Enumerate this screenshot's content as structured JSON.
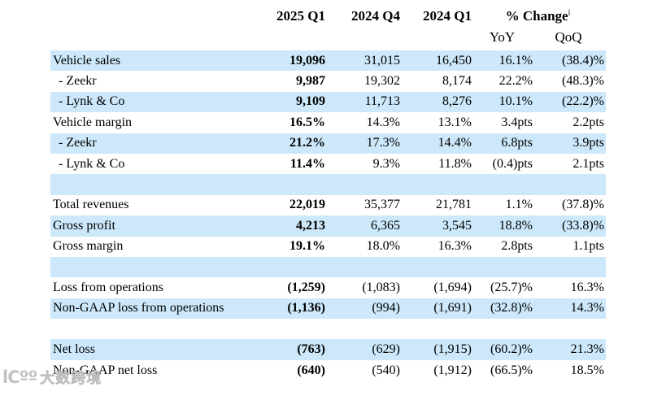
{
  "colors": {
    "stripe": "#cce8fa",
    "text": "#000000"
  },
  "header": {
    "col_2025_q1": "2025 Q1",
    "col_2024_q4": "2024 Q4",
    "col_2024_q1": "2024 Q1",
    "pct_change": "% Change",
    "pct_change_footnote": "i",
    "yoy": "YoY",
    "qoq": "QoQ"
  },
  "table": {
    "rows": [
      {
        "type": "data",
        "label": "Vehicle sales",
        "indent": false,
        "values": [
          "19,096",
          "31,015",
          "16,450",
          "16.1%",
          "(38.4)%"
        ]
      },
      {
        "type": "data",
        "label": "- Zeekr",
        "indent": true,
        "values": [
          "9,987",
          "19,302",
          "8,174",
          "22.2%",
          "(48.3)%"
        ]
      },
      {
        "type": "data",
        "label": "- Lynk & Co",
        "indent": true,
        "values": [
          "9,109",
          "11,713",
          "8,276",
          "10.1%",
          "(22.2)%"
        ]
      },
      {
        "type": "data",
        "label": "Vehicle margin",
        "indent": false,
        "values": [
          "16.5%",
          "14.3%",
          "13.1%",
          "3.4pts",
          "2.2pts"
        ]
      },
      {
        "type": "data",
        "label": "- Zeekr",
        "indent": true,
        "values": [
          "21.2%",
          "17.3%",
          "14.4%",
          "6.8pts",
          "3.9pts"
        ]
      },
      {
        "type": "data",
        "label": "- Lynk & Co",
        "indent": true,
        "values": [
          "11.4%",
          "9.3%",
          "11.8%",
          "(0.4)pts",
          "2.1pts"
        ]
      },
      {
        "type": "spacer",
        "label": "",
        "indent": false,
        "values": [
          "",
          "",
          "",
          "",
          ""
        ]
      },
      {
        "type": "data",
        "label": "Total revenues",
        "indent": false,
        "values": [
          "22,019",
          "35,377",
          "21,781",
          "1.1%",
          "(37.8)%"
        ]
      },
      {
        "type": "data",
        "label": "Gross profit",
        "indent": false,
        "values": [
          "4,213",
          "6,365",
          "3,545",
          "18.8%",
          "(33.8)%"
        ]
      },
      {
        "type": "data",
        "label": "Gross margin",
        "indent": false,
        "values": [
          "19.1%",
          "18.0%",
          "16.3%",
          "2.8pts",
          "1.1pts"
        ]
      },
      {
        "type": "spacer",
        "label": "",
        "indent": false,
        "values": [
          "",
          "",
          "",
          "",
          ""
        ]
      },
      {
        "type": "data",
        "label": "Loss from operations",
        "indent": false,
        "values": [
          "(1,259)",
          "(1,083)",
          "(1,694)",
          "(25.7)%",
          "16.3%"
        ]
      },
      {
        "type": "data",
        "label": "Non-GAAP loss from operations",
        "indent": false,
        "values": [
          "(1,136)",
          "(994)",
          "(1,691)",
          "(32.8)%",
          "14.3%"
        ]
      },
      {
        "type": "spacer",
        "label": "",
        "indent": false,
        "values": [
          "",
          "",
          "",
          "",
          ""
        ]
      },
      {
        "type": "data",
        "label": "Net loss",
        "indent": false,
        "values": [
          "(763)",
          "(629)",
          "(1,915)",
          "(60.2)%",
          "21.3%"
        ]
      },
      {
        "type": "data",
        "label": "Non-GAAP net loss",
        "indent": false,
        "values": [
          "(640)",
          "(540)",
          "(1,912)",
          "(66.5)%",
          "18.5%"
        ]
      }
    ]
  },
  "watermark": {
    "logo": "lCºº",
    "text": "大数跨境"
  }
}
